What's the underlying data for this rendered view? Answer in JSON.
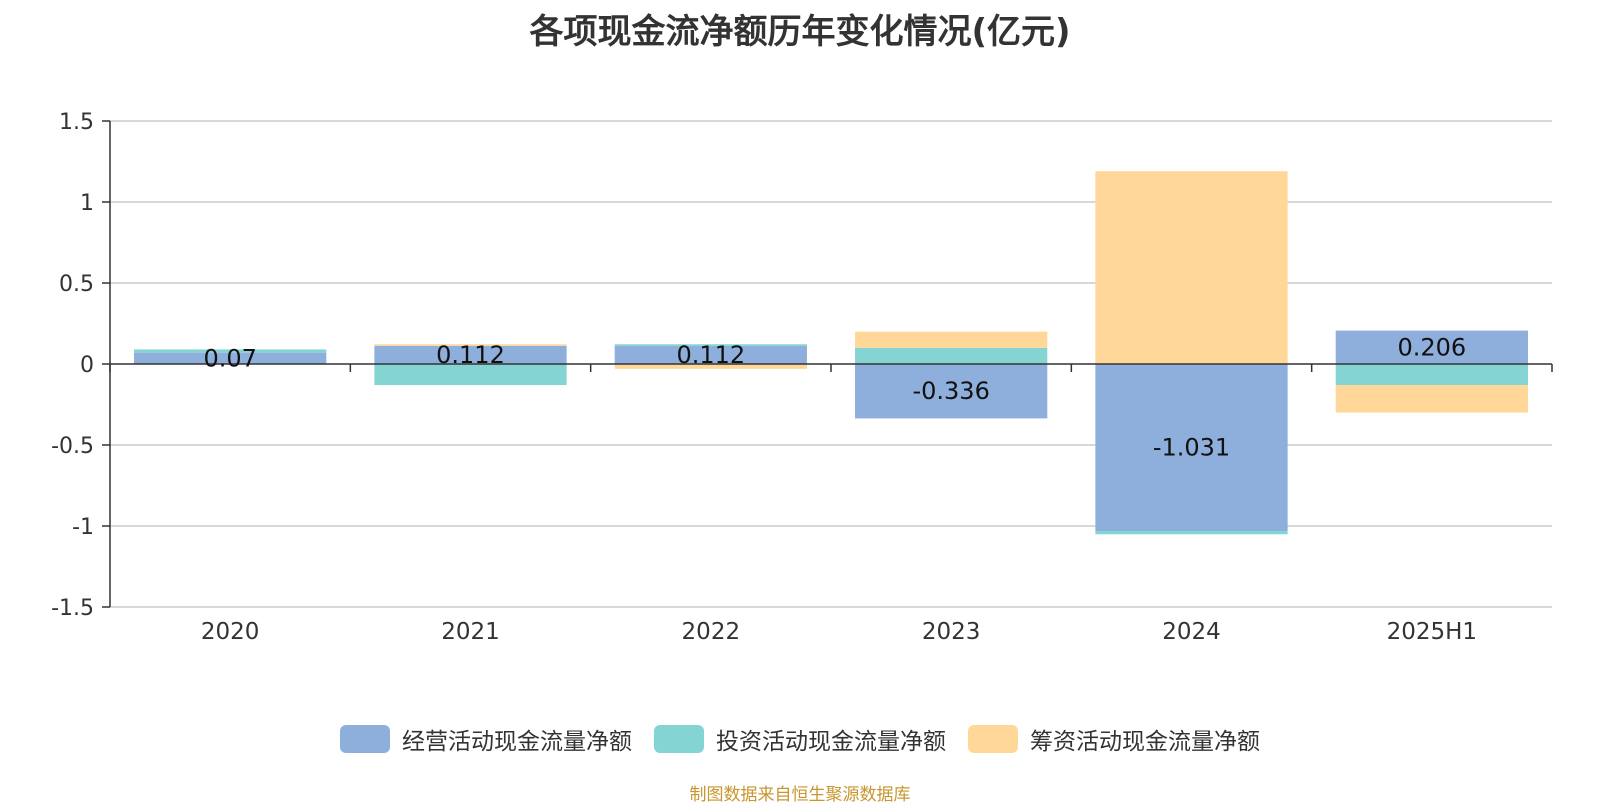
{
  "chart_data": {
    "type": "bar",
    "stacked": true,
    "title": "各项现金流净额历年变化情况(亿元)",
    "categories": [
      "2020",
      "2021",
      "2022",
      "2023",
      "2024",
      "2025H1"
    ],
    "series": [
      {
        "name": "经营活动现金流量净额",
        "color": "#8eaedb",
        "values": [
          0.07,
          0.112,
          0.112,
          -0.336,
          -1.031,
          0.206
        ]
      },
      {
        "name": "投资活动现金流量净额",
        "color": "#84d4d4",
        "values": [
          0.02,
          -0.13,
          0.01,
          0.1,
          -0.02,
          -0.13
        ]
      },
      {
        "name": "筹资活动现金流量净额",
        "color": "#ffd899",
        "values": [
          0.0,
          0.01,
          -0.03,
          0.1,
          1.19,
          -0.17
        ]
      }
    ],
    "data_labels": [
      "0.07",
      "0.112",
      "0.112",
      "-0.336",
      "-1.031",
      "0.206"
    ],
    "y_ticks": [
      "1.5",
      "1",
      "0.5",
      "0",
      "-0.5",
      "-1",
      "-1.5"
    ],
    "ylim": [
      -1.5,
      1.5
    ],
    "grid": true,
    "legend_position": "bottom"
  },
  "source_note": "制图数据来自恒生聚源数据库"
}
